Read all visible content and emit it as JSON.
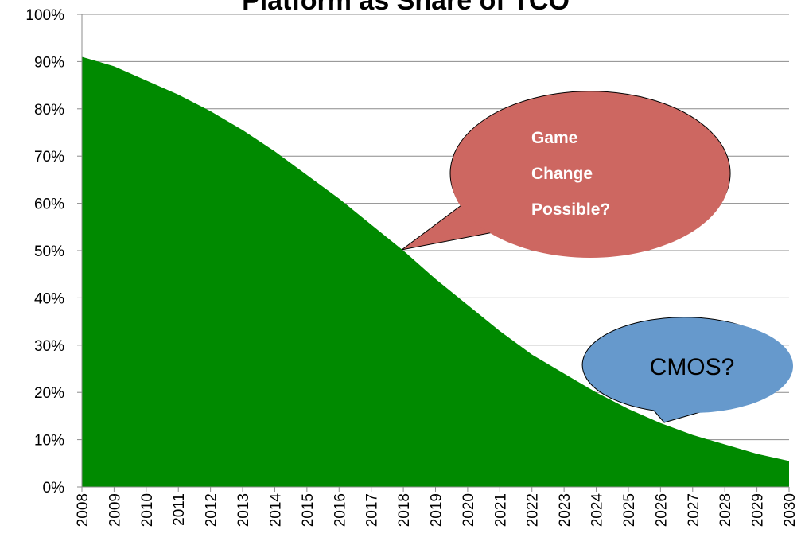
{
  "chart_data": {
    "type": "area",
    "title": "Platform as Share of TCO",
    "categories": [
      "2008",
      "2009",
      "2010",
      "2011",
      "2012",
      "2013",
      "2014",
      "2015",
      "2016",
      "2017",
      "2018",
      "2019",
      "2020",
      "2021",
      "2022",
      "2023",
      "2024",
      "2025",
      "2026",
      "2027",
      "2028",
      "2029",
      "2030"
    ],
    "values": [
      91,
      89,
      86,
      83,
      79.5,
      75.5,
      71,
      66,
      61,
      55.5,
      50,
      44,
      38.5,
      33,
      28,
      24,
      20,
      16.5,
      13.5,
      11,
      9,
      7,
      5.5
    ],
    "color": "#008a00",
    "ylim": [
      0,
      100
    ],
    "yticks": [
      {
        "value": 0,
        "label": "0%"
      },
      {
        "value": 10,
        "label": "10%"
      },
      {
        "value": 20,
        "label": "20%"
      },
      {
        "value": 30,
        "label": "30%"
      },
      {
        "value": 40,
        "label": "40%"
      },
      {
        "value": 50,
        "label": "50%"
      },
      {
        "value": 60,
        "label": "60%"
      },
      {
        "value": 70,
        "label": "70%"
      },
      {
        "value": 80,
        "label": "80%"
      },
      {
        "value": 90,
        "label": "90%"
      },
      {
        "value": 100,
        "label": "100%"
      }
    ],
    "grid": true,
    "annotations": [
      "Game Change Possible?",
      "CMOS?"
    ]
  }
}
